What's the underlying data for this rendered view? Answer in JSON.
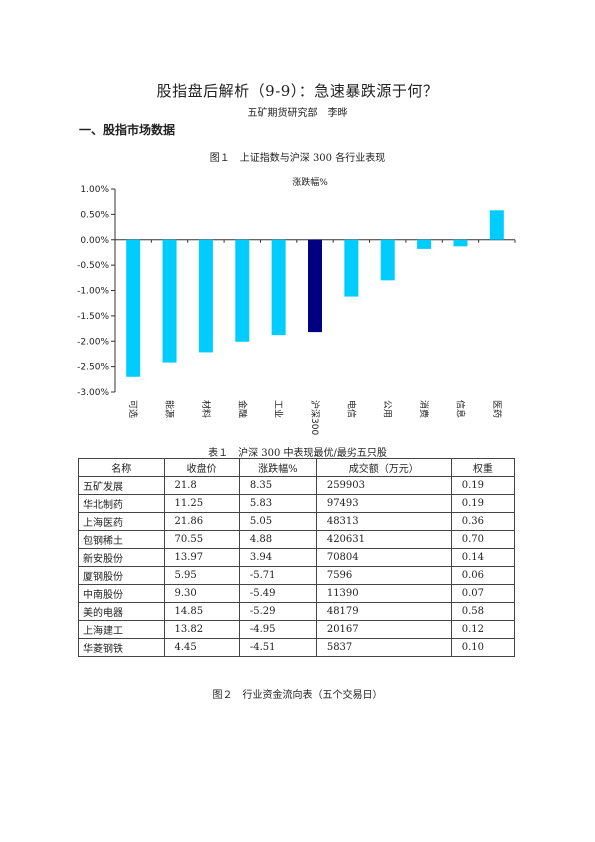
{
  "title": "股指盘后解析（9-9）：急速暴跌源于何？",
  "author": "五矿期货研究部　李晔",
  "section1": "一、股指市场数据",
  "figure1_caption": "图１　上证指数与沪深 300 各行业表现",
  "table1_caption": "表１　沪深 300 中表现最优/最劣五只股",
  "figure2_caption": "图２　行业资金流向表（五个交易日）",
  "colors": {
    "bar": "#00ccff",
    "highlight": "#000080"
  },
  "chart_data": {
    "type": "bar",
    "title": "涨跌幅%",
    "categories": [
      "可选",
      "能源",
      "材料",
      "金融",
      "工业",
      "沪深300",
      "电信",
      "公用",
      "消费",
      "信息",
      "医药"
    ],
    "values": [
      -2.7,
      -2.42,
      -2.22,
      -2.01,
      -1.88,
      -1.82,
      -1.12,
      -0.8,
      -0.18,
      -0.13,
      0.58
    ],
    "highlight_index": 5,
    "ylim": [
      -3.0,
      1.0
    ],
    "yticks": [
      "1.00%",
      "0.50%",
      "0.00%",
      "-0.50%",
      "-1.00%",
      "-1.50%",
      "-2.00%",
      "-2.50%",
      "-3.00%"
    ],
    "ytick_values": [
      1.0,
      0.5,
      0.0,
      -0.5,
      -1.0,
      -1.5,
      -2.0,
      -2.5,
      -3.0
    ],
    "grid": false
  },
  "table": {
    "headers": [
      "名称",
      "收盘价",
      "涨跌幅%",
      "成交额（万元）",
      "权重"
    ],
    "rows": [
      [
        "五矿发展",
        "21.8",
        "8.35",
        "259903",
        "0.19"
      ],
      [
        "华北制药",
        "11.25",
        "5.83",
        "97493",
        "0.19"
      ],
      [
        "上海医药",
        "21.86",
        "5.05",
        "48313",
        "0.36"
      ],
      [
        "包钢稀土",
        "70.55",
        "4.88",
        "420631",
        "0.70"
      ],
      [
        "新安股份",
        "13.97",
        "3.94",
        "70804",
        "0.14"
      ],
      [
        "厦钢股份",
        "5.95",
        "-5.71",
        "7596",
        "0.06"
      ],
      [
        "中南股份",
        "9.30",
        "-5.49",
        "11390",
        "0.07"
      ],
      [
        "美的电器",
        "14.85",
        "-5.29",
        "48179",
        "0.58"
      ],
      [
        "上海建工",
        "13.82",
        "-4.95",
        "20167",
        "0.12"
      ],
      [
        "华菱钢铁",
        "4.45",
        "-4.51",
        "5837",
        "0.10"
      ]
    ]
  }
}
